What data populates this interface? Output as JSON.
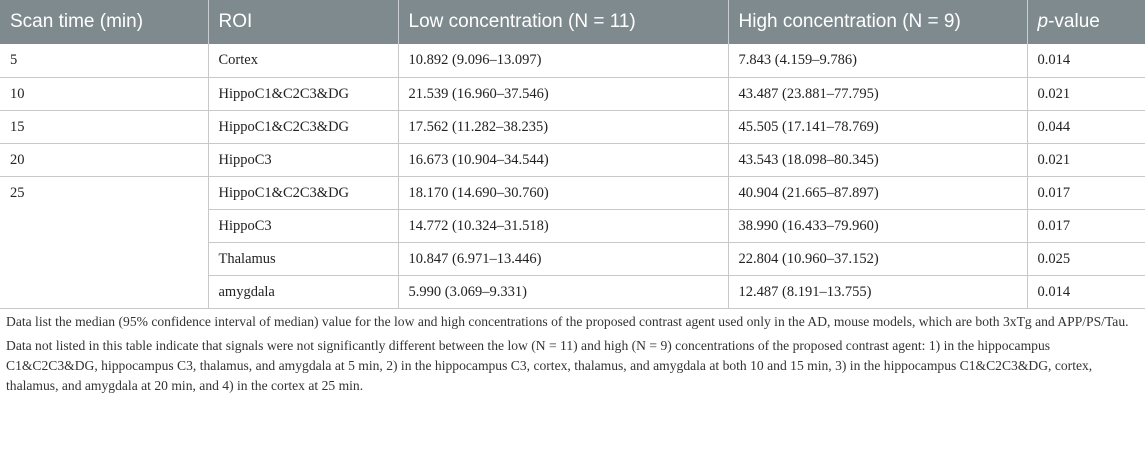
{
  "table": {
    "headers": {
      "scan_time": "Scan time (min)",
      "roi": "ROI",
      "low": "Low concentration (N = 11)",
      "high": "High concentration (N = 9)",
      "p_italic": "p",
      "p_rest": "-value"
    },
    "rows": [
      {
        "scan_time": "5",
        "roi": "Cortex",
        "low": "10.892 (9.096–13.097)",
        "high": "7.843 (4.159–9.786)",
        "p": "0.014"
      },
      {
        "scan_time": "10",
        "roi": "HippoC1&C2C3&DG",
        "low": "21.539 (16.960–37.546)",
        "high": "43.487 (23.881–77.795)",
        "p": "0.021"
      },
      {
        "scan_time": "15",
        "roi": "HippoC1&C2C3&DG",
        "low": "17.562 (11.282–38.235)",
        "high": "45.505 (17.141–78.769)",
        "p": "0.044"
      },
      {
        "scan_time": "20",
        "roi": "HippoC3",
        "low": "16.673 (10.904–34.544)",
        "high": "43.543 (18.098–80.345)",
        "p": "0.021"
      },
      {
        "scan_time": "25",
        "roi": "HippoC1&C2C3&DG",
        "low": "18.170 (14.690–30.760)",
        "high": "40.904 (21.665–87.897)",
        "p": "0.017"
      },
      {
        "scan_time": "",
        "roi": "HippoC3",
        "low": "14.772 (10.324–31.518)",
        "high": "38.990 (16.433–79.960)",
        "p": "0.017"
      },
      {
        "scan_time": "",
        "roi": "Thalamus",
        "low": "10.847 (6.971–13.446)",
        "high": "22.804 (10.960–37.152)",
        "p": "0.025"
      },
      {
        "scan_time": "",
        "roi": "amygdala",
        "low": "5.990 (3.069–9.331)",
        "high": "12.487 (8.191–13.755)",
        "p": "0.014"
      }
    ]
  },
  "notes": [
    "Data list the median (95% confidence interval of median) value for the low and high concentrations of the proposed contrast agent used only in the AD, mouse models, which are both 3xTg and APP/PS/Tau.",
    "Data not listed in this table indicate that signals were not significantly different between the low (N = 11) and high (N = 9) concentrations of the proposed contrast agent: 1) in the hippocampus C1&C2C3&DG, hippocampus C3, thalamus, and amygdala at 5 min, 2) in the hippocampus C3, cortex, thalamus, and amygdala at both 10 and 15 min, 3) in the hippocampus C1&C2C3&DG, cortex, thalamus, and amygdala at 20 min, and 4) in the cortex at 25 min."
  ]
}
